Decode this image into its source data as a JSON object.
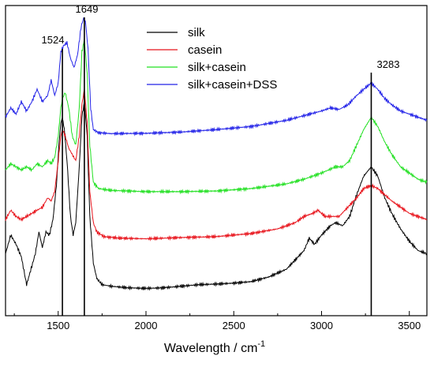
{
  "chart_data": {
    "type": "line",
    "title": "",
    "xlabel": "Wavelength / cm",
    "xlabel_superscript": "-1",
    "ylabel": "",
    "xlim": [
      1200,
      3600
    ],
    "x_ticks": [
      1500,
      2000,
      2500,
      3000,
      3500
    ],
    "y_ticks_shown": false,
    "grid": false,
    "legend_position": "top-center",
    "reference_lines": [
      {
        "label": "1524",
        "x": 1524
      },
      {
        "label": "1649",
        "x": 1649
      },
      {
        "label": "3283",
        "x": 3283
      }
    ],
    "series": [
      {
        "name": "silk",
        "color": "#000000",
        "points": [
          [
            1200,
            0.8
          ],
          [
            1230,
            0.74
          ],
          [
            1260,
            0.77
          ],
          [
            1290,
            0.81
          ],
          [
            1320,
            0.9
          ],
          [
            1350,
            0.84
          ],
          [
            1370,
            0.8
          ],
          [
            1390,
            0.73
          ],
          [
            1410,
            0.78
          ],
          [
            1430,
            0.73
          ],
          [
            1450,
            0.74
          ],
          [
            1470,
            0.69
          ],
          [
            1490,
            0.58
          ],
          [
            1505,
            0.44
          ],
          [
            1515,
            0.38
          ],
          [
            1524,
            0.36
          ],
          [
            1535,
            0.4
          ],
          [
            1550,
            0.5
          ],
          [
            1570,
            0.68
          ],
          [
            1585,
            0.74
          ],
          [
            1600,
            0.7
          ],
          [
            1620,
            0.52
          ],
          [
            1635,
            0.36
          ],
          [
            1649,
            0.31
          ],
          [
            1665,
            0.42
          ],
          [
            1680,
            0.68
          ],
          [
            1700,
            0.83
          ],
          [
            1720,
            0.88
          ],
          [
            1750,
            0.9
          ],
          [
            1800,
            0.905
          ],
          [
            1900,
            0.91
          ],
          [
            2000,
            0.912
          ],
          [
            2100,
            0.91
          ],
          [
            2200,
            0.905
          ],
          [
            2300,
            0.9
          ],
          [
            2400,
            0.898
          ],
          [
            2500,
            0.895
          ],
          [
            2600,
            0.89
          ],
          [
            2700,
            0.875
          ],
          [
            2800,
            0.85
          ],
          [
            2850,
            0.82
          ],
          [
            2900,
            0.79
          ],
          [
            2930,
            0.75
          ],
          [
            2960,
            0.77
          ],
          [
            3000,
            0.74
          ],
          [
            3050,
            0.71
          ],
          [
            3080,
            0.7
          ],
          [
            3120,
            0.71
          ],
          [
            3160,
            0.68
          ],
          [
            3200,
            0.61
          ],
          [
            3240,
            0.55
          ],
          [
            3283,
            0.52
          ],
          [
            3320,
            0.55
          ],
          [
            3360,
            0.62
          ],
          [
            3400,
            0.67
          ],
          [
            3450,
            0.72
          ],
          [
            3500,
            0.76
          ],
          [
            3550,
            0.79
          ],
          [
            3600,
            0.8
          ]
        ]
      },
      {
        "name": "casein",
        "color": "#e8131b",
        "points": [
          [
            1200,
            0.69
          ],
          [
            1230,
            0.66
          ],
          [
            1260,
            0.68
          ],
          [
            1290,
            0.69
          ],
          [
            1320,
            0.68
          ],
          [
            1350,
            0.67
          ],
          [
            1380,
            0.66
          ],
          [
            1410,
            0.65
          ],
          [
            1440,
            0.62
          ],
          [
            1460,
            0.63
          ],
          [
            1480,
            0.6
          ],
          [
            1500,
            0.5
          ],
          [
            1515,
            0.42
          ],
          [
            1524,
            0.4
          ],
          [
            1540,
            0.42
          ],
          [
            1560,
            0.46
          ],
          [
            1580,
            0.48
          ],
          [
            1600,
            0.5
          ],
          [
            1620,
            0.42
          ],
          [
            1635,
            0.32
          ],
          [
            1649,
            0.27
          ],
          [
            1665,
            0.38
          ],
          [
            1680,
            0.6
          ],
          [
            1700,
            0.7
          ],
          [
            1720,
            0.73
          ],
          [
            1760,
            0.745
          ],
          [
            1850,
            0.75
          ],
          [
            2000,
            0.752
          ],
          [
            2200,
            0.748
          ],
          [
            2400,
            0.745
          ],
          [
            2600,
            0.735
          ],
          [
            2750,
            0.72
          ],
          [
            2850,
            0.7
          ],
          [
            2900,
            0.68
          ],
          [
            2950,
            0.67
          ],
          [
            2980,
            0.66
          ],
          [
            3020,
            0.68
          ],
          [
            3060,
            0.68
          ],
          [
            3100,
            0.68
          ],
          [
            3150,
            0.65
          ],
          [
            3200,
            0.62
          ],
          [
            3240,
            0.59
          ],
          [
            3283,
            0.58
          ],
          [
            3320,
            0.59
          ],
          [
            3360,
            0.61
          ],
          [
            3400,
            0.63
          ],
          [
            3450,
            0.65
          ],
          [
            3500,
            0.67
          ],
          [
            3550,
            0.68
          ],
          [
            3600,
            0.69
          ]
        ]
      },
      {
        "name": "silk+casein",
        "color": "#22e022",
        "points": [
          [
            1200,
            0.53
          ],
          [
            1230,
            0.51
          ],
          [
            1260,
            0.52
          ],
          [
            1290,
            0.53
          ],
          [
            1320,
            0.52
          ],
          [
            1350,
            0.53
          ],
          [
            1380,
            0.51
          ],
          [
            1410,
            0.52
          ],
          [
            1440,
            0.5
          ],
          [
            1460,
            0.51
          ],
          [
            1480,
            0.49
          ],
          [
            1500,
            0.42
          ],
          [
            1515,
            0.33
          ],
          [
            1524,
            0.3
          ],
          [
            1540,
            0.28
          ],
          [
            1560,
            0.33
          ],
          [
            1580,
            0.42
          ],
          [
            1600,
            0.45
          ],
          [
            1620,
            0.33
          ],
          [
            1635,
            0.15
          ],
          [
            1649,
            0.11
          ],
          [
            1665,
            0.22
          ],
          [
            1680,
            0.45
          ],
          [
            1700,
            0.57
          ],
          [
            1730,
            0.59
          ],
          [
            1800,
            0.596
          ],
          [
            2000,
            0.6
          ],
          [
            2200,
            0.6
          ],
          [
            2400,
            0.598
          ],
          [
            2600,
            0.59
          ],
          [
            2800,
            0.575
          ],
          [
            2900,
            0.56
          ],
          [
            3000,
            0.54
          ],
          [
            3080,
            0.52
          ],
          [
            3120,
            0.52
          ],
          [
            3160,
            0.5
          ],
          [
            3200,
            0.45
          ],
          [
            3240,
            0.4
          ],
          [
            3283,
            0.36
          ],
          [
            3320,
            0.39
          ],
          [
            3360,
            0.44
          ],
          [
            3400,
            0.48
          ],
          [
            3450,
            0.52
          ],
          [
            3500,
            0.54
          ],
          [
            3550,
            0.56
          ],
          [
            3600,
            0.57
          ]
        ]
      },
      {
        "name": "silk+casein+DSS",
        "color": "#2323e8",
        "points": [
          [
            1200,
            0.36
          ],
          [
            1230,
            0.33
          ],
          [
            1260,
            0.35
          ],
          [
            1290,
            0.31
          ],
          [
            1320,
            0.34
          ],
          [
            1350,
            0.31
          ],
          [
            1380,
            0.27
          ],
          [
            1410,
            0.31
          ],
          [
            1440,
            0.29
          ],
          [
            1460,
            0.24
          ],
          [
            1480,
            0.29
          ],
          [
            1500,
            0.25
          ],
          [
            1515,
            0.15
          ],
          [
            1530,
            0.13
          ],
          [
            1550,
            0.12
          ],
          [
            1570,
            0.17
          ],
          [
            1590,
            0.2
          ],
          [
            1610,
            0.16
          ],
          [
            1630,
            0.07
          ],
          [
            1645,
            0.04
          ],
          [
            1655,
            0.05
          ],
          [
            1670,
            0.14
          ],
          [
            1685,
            0.33
          ],
          [
            1700,
            0.4
          ],
          [
            1730,
            0.41
          ],
          [
            1800,
            0.413
          ],
          [
            2000,
            0.412
          ],
          [
            2200,
            0.408
          ],
          [
            2400,
            0.4
          ],
          [
            2600,
            0.39
          ],
          [
            2800,
            0.37
          ],
          [
            2900,
            0.355
          ],
          [
            3000,
            0.34
          ],
          [
            3050,
            0.33
          ],
          [
            3100,
            0.335
          ],
          [
            3150,
            0.32
          ],
          [
            3200,
            0.29
          ],
          [
            3240,
            0.27
          ],
          [
            3283,
            0.25
          ],
          [
            3320,
            0.27
          ],
          [
            3360,
            0.3
          ],
          [
            3400,
            0.32
          ],
          [
            3450,
            0.34
          ],
          [
            3500,
            0.35
          ],
          [
            3550,
            0.36
          ],
          [
            3600,
            0.37
          ]
        ]
      }
    ]
  }
}
